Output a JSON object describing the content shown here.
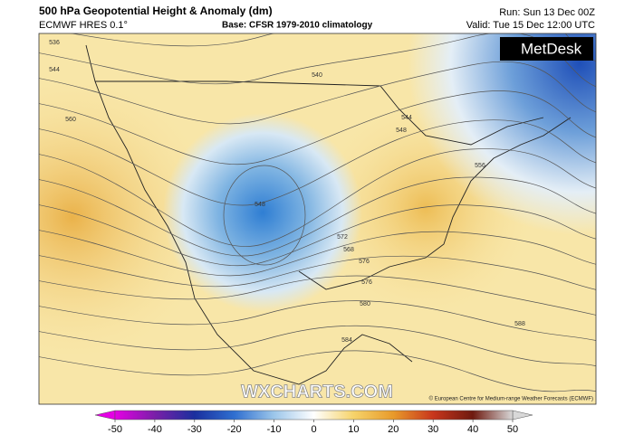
{
  "header": {
    "title": "500 hPa Geopotential Height & Anomaly (dm)",
    "model": "ECMWF HRES 0.1°",
    "base": "Base: CFSR 1979-2010 climatology",
    "run": "Run: Sun 13 Dec 00Z",
    "valid": "Valid: Tue 15 Dec 12:00 UTC"
  },
  "map": {
    "logo": "MetDesk",
    "watermark": "WXCHARTS.COM",
    "credit": "© European Centre for Medium-range Weather Forecasts (ECMWF)",
    "contour_labels": [
      "536",
      "544",
      "560",
      "540",
      "544",
      "548",
      "556",
      "548",
      "568",
      "572",
      "576",
      "576",
      "580",
      "584",
      "588"
    ]
  },
  "colorbar": {
    "ticks": [
      -50,
      -40,
      -30,
      -20,
      -10,
      0,
      10,
      20,
      30,
      40,
      50
    ],
    "colors": [
      "#e400e4",
      "#7a1fa8",
      "#1a2f9e",
      "#2f6fd0",
      "#9cc6ea",
      "#ffffff",
      "#f6d36a",
      "#e89a2a",
      "#c8361c",
      "#6e1a10",
      "#d8d8d8"
    ]
  }
}
